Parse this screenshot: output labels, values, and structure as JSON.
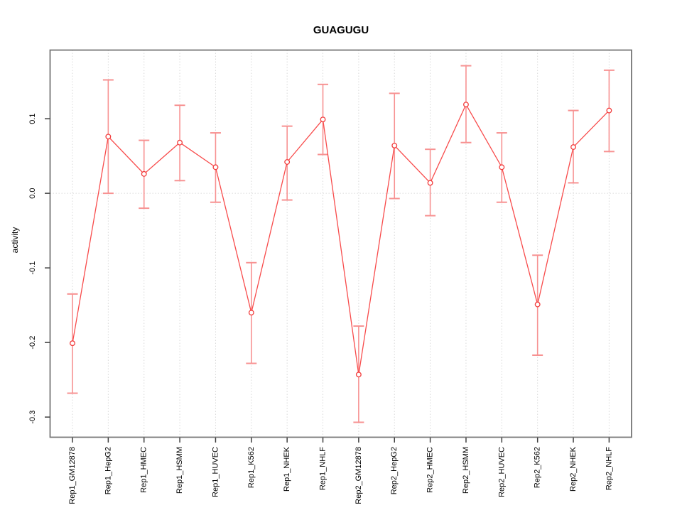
{
  "chart_data": {
    "type": "scatter",
    "title": "GUAGUGU",
    "xlabel": "",
    "ylabel": "activity",
    "legend": "none",
    "grid": {
      "vertical": "dotted-per-category",
      "horizontal_at": 0.0
    },
    "categories": [
      "Rep1_GM12878",
      "Rep1_HepG2",
      "Rep1_HMEC",
      "Rep1_HSMM",
      "Rep1_HUVEC",
      "Rep1_K562",
      "Rep1_NHEK",
      "Rep1_NHLF",
      "Rep2_GM12878",
      "Rep2_HepG2",
      "Rep2_HMEC",
      "Rep2_HSMM",
      "Rep2_HUVEC",
      "Rep2_K562",
      "Rep2_NHEK",
      "Rep2_NHLF"
    ],
    "series": [
      {
        "name": "activity",
        "marker": "open-circle",
        "values": [
          -0.201,
          0.076,
          0.026,
          0.068,
          0.035,
          -0.16,
          0.042,
          0.099,
          -0.243,
          0.064,
          0.014,
          0.119,
          0.035,
          -0.149,
          0.062,
          0.111
        ],
        "error_low": [
          -0.268,
          0.0,
          -0.02,
          0.017,
          -0.012,
          -0.228,
          -0.009,
          0.052,
          -0.307,
          -0.007,
          -0.03,
          0.068,
          -0.012,
          -0.217,
          0.014,
          0.056
        ],
        "error_high": [
          -0.135,
          0.152,
          0.071,
          0.118,
          0.081,
          -0.093,
          0.09,
          0.146,
          -0.178,
          0.134,
          0.059,
          0.171,
          0.081,
          -0.083,
          0.111,
          0.165
        ]
      }
    ],
    "yticks": [
      -0.3,
      -0.2,
      -0.1,
      0.0,
      0.1
    ],
    "ytick_labels": [
      "-0.3",
      "-0.2",
      "-0.1",
      "0.0",
      "0.1"
    ],
    "ylim": [
      -0.327,
      0.192
    ],
    "colors": {
      "line": "#f84b4b",
      "error_bar": "#f79292",
      "marker_stroke": "#f23b3b",
      "marker_fill": "#ffffff",
      "grid": "#d9d9d9",
      "box": "#757575",
      "tick": "#3f3f3f",
      "text": "#000000",
      "background": "#ffffff"
    }
  }
}
